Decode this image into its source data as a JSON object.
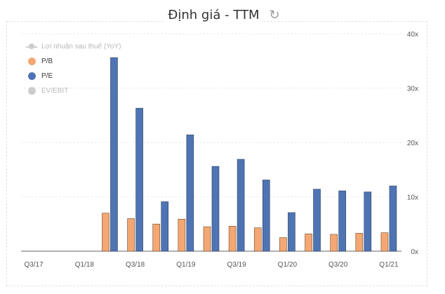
{
  "header": {
    "title": "Định giá - TTM",
    "refresh_icon": "refresh-icon"
  },
  "legend": [
    {
      "name": "Lợi nhuận sau thuế (YoY)",
      "color": "#cccccc",
      "symbol": "line",
      "visible": false
    },
    {
      "name": "P/B",
      "color": "#f4a772",
      "symbol": "dot",
      "visible": true
    },
    {
      "name": "P/E",
      "color": "#4f74b3",
      "symbol": "dot",
      "visible": true
    },
    {
      "name": "EV/EBIT",
      "color": "#cccccc",
      "symbol": "dot",
      "visible": false
    }
  ],
  "chart_data": {
    "type": "bar",
    "title": "Định giá - TTM",
    "categories": [
      "Q3/17",
      "Q4/17",
      "Q1/18",
      "Q2/18",
      "Q3/18",
      "Q4/18",
      "Q1/19",
      "Q2/19",
      "Q3/19",
      "Q4/19",
      "Q1/20",
      "Q2/20",
      "Q3/20",
      "Q4/20",
      "Q1/21"
    ],
    "x_tick_labels": [
      "Q3/17",
      "Q1/18",
      "Q3/18",
      "Q1/19",
      "Q3/19",
      "Q1/20",
      "Q3/20",
      "Q1/21"
    ],
    "series": [
      {
        "name": "P/B",
        "color": "#f4a772",
        "values": [
          null,
          null,
          null,
          7.0,
          6.0,
          5.0,
          5.9,
          4.5,
          4.6,
          4.3,
          2.5,
          3.2,
          3.1,
          3.3,
          3.4
        ]
      },
      {
        "name": "P/E",
        "color": "#4f74b3",
        "values": [
          null,
          null,
          null,
          35.6,
          26.3,
          9.1,
          21.4,
          15.6,
          16.9,
          13.1,
          7.1,
          11.4,
          11.1,
          10.9,
          12.0
        ]
      }
    ],
    "y_axis": {
      "position": "right",
      "ylim": [
        0,
        40
      ],
      "ticks": [
        0,
        10,
        20,
        30,
        40
      ],
      "tick_labels": [
        "0x",
        "10x",
        "20x",
        "30x",
        "40x"
      ]
    },
    "grid": true,
    "legend_position": "top-left"
  }
}
